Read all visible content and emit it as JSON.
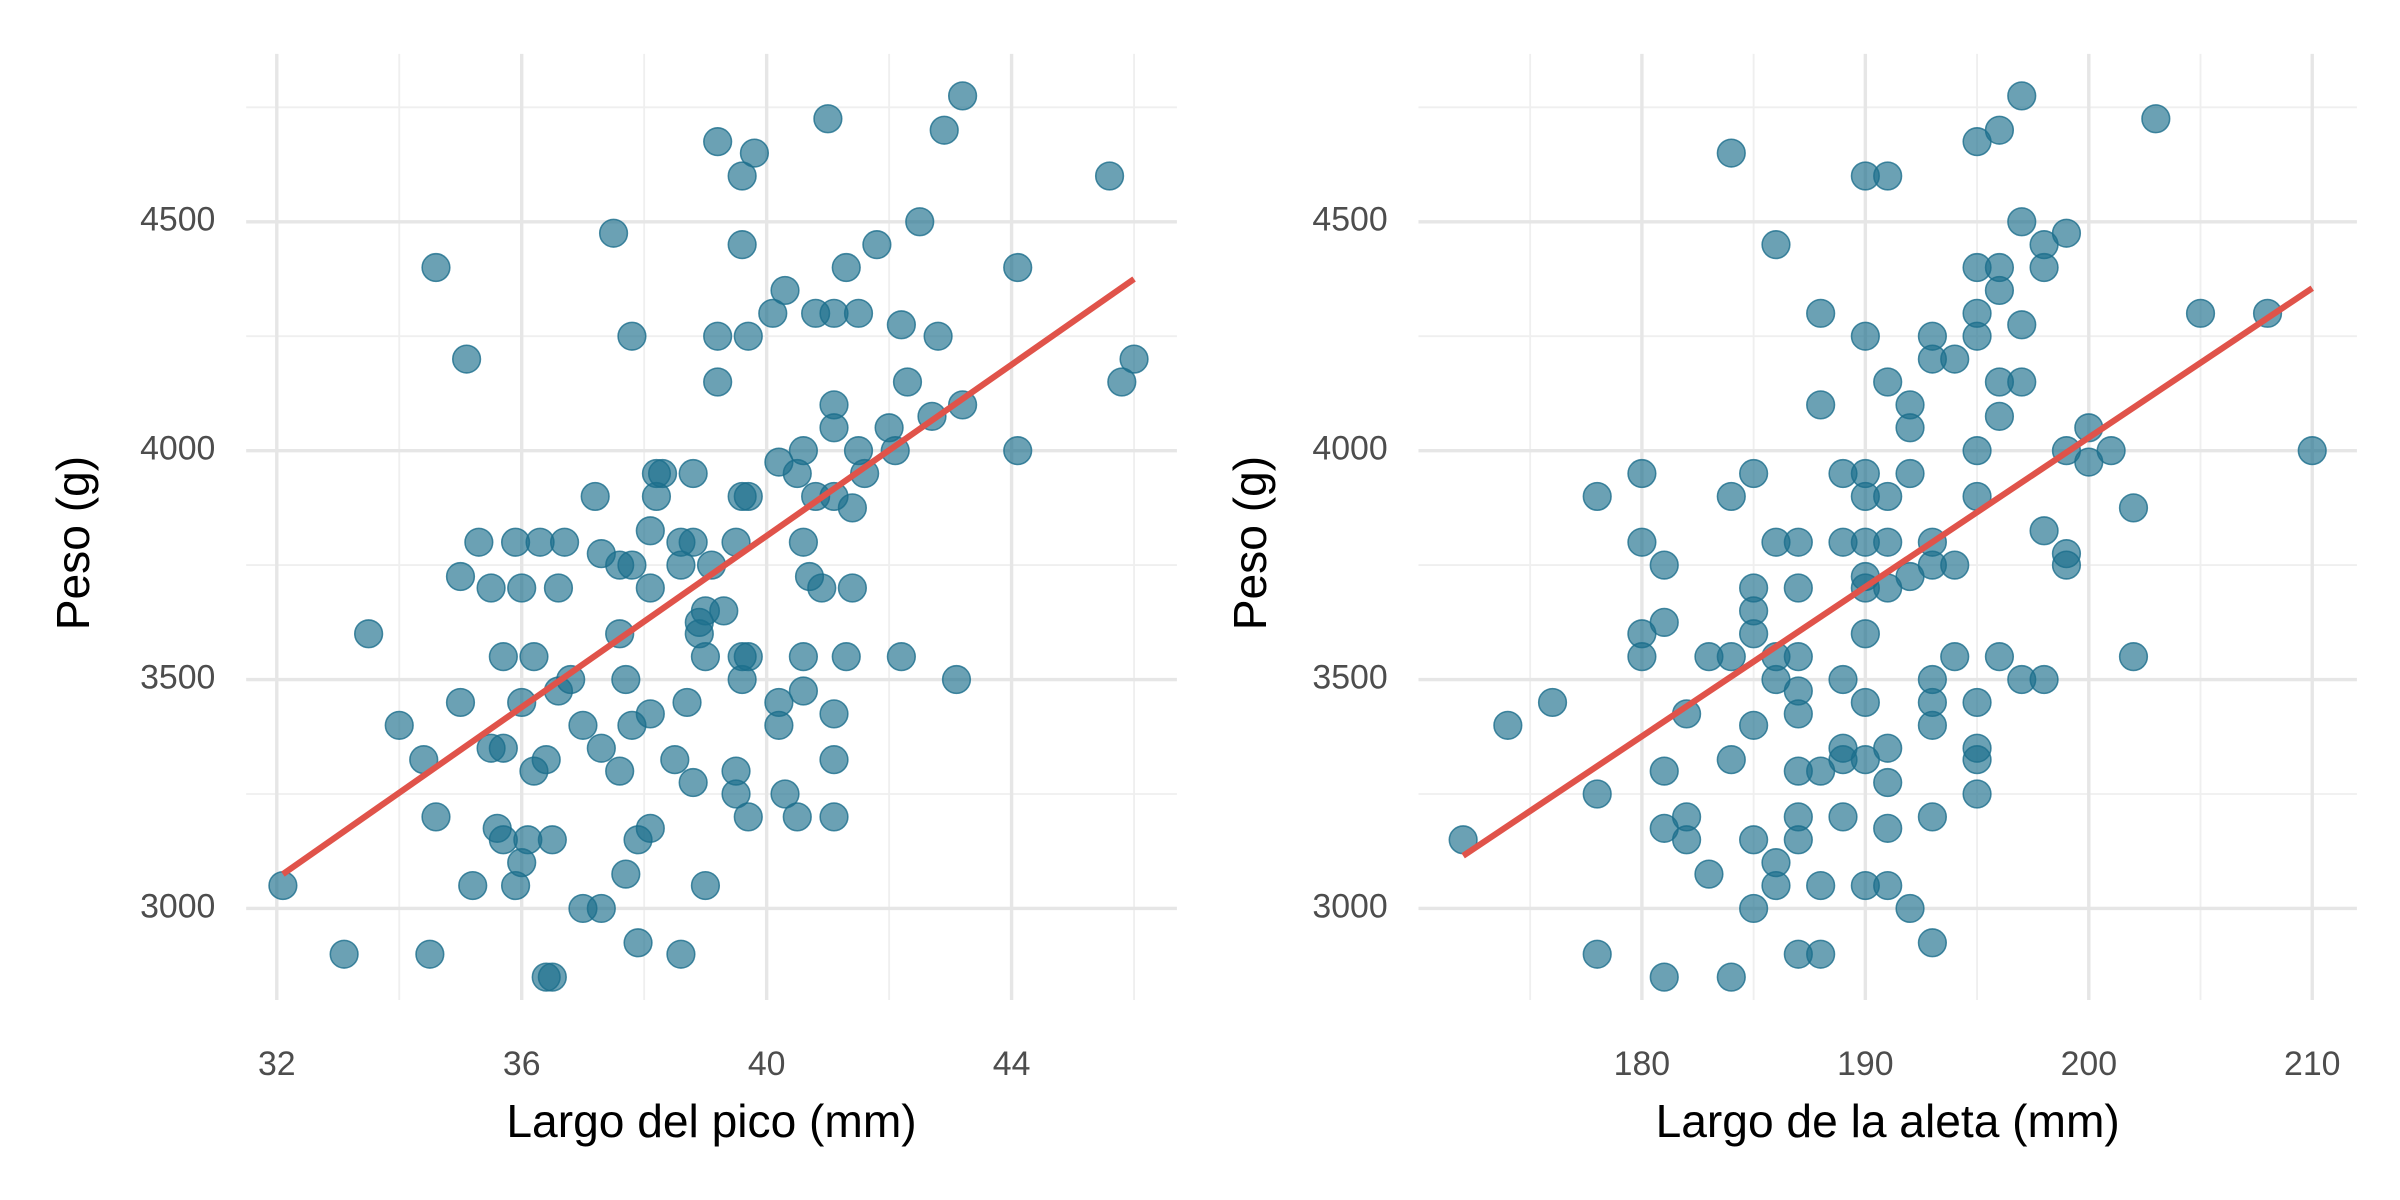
{
  "chart_data": [
    {
      "type": "scatter",
      "xlabel": "Largo del pico (mm)",
      "ylabel": "Peso (g)",
      "color": "#1b6e8c",
      "x": [
        32.1,
        33.1,
        33.5,
        34.0,
        34.4,
        34.5,
        34.6,
        34.6,
        35.0,
        35.0,
        35.1,
        35.2,
        35.3,
        35.5,
        35.5,
        35.6,
        35.7,
        35.7,
        35.7,
        35.9,
        35.9,
        36.0,
        36.0,
        36.0,
        36.1,
        36.2,
        36.2,
        36.3,
        36.4,
        36.4,
        36.5,
        36.5,
        36.6,
        36.6,
        36.7,
        36.8,
        37.0,
        37.0,
        37.2,
        37.3,
        37.3,
        37.3,
        37.5,
        37.6,
        37.6,
        37.6,
        37.7,
        37.7,
        37.8,
        37.8,
        37.8,
        37.9,
        37.9,
        38.1,
        38.1,
        38.1,
        38.1,
        38.2,
        38.2,
        38.3,
        38.5,
        38.6,
        38.6,
        38.6,
        38.7,
        38.8,
        38.8,
        38.8,
        38.9,
        38.9,
        39.0,
        39.0,
        39.0,
        39.1,
        39.2,
        39.2,
        39.2,
        39.3,
        39.5,
        39.5,
        39.5,
        39.6,
        39.6,
        39.6,
        39.6,
        39.6,
        39.7,
        39.7,
        39.7,
        39.7,
        39.8,
        40.1,
        40.2,
        40.2,
        40.2,
        40.3,
        40.3,
        40.5,
        40.5,
        40.6,
        40.6,
        40.6,
        40.6,
        40.7,
        40.8,
        40.8,
        40.9,
        41.0,
        41.1,
        41.1,
        41.1,
        41.1,
        41.1,
        41.1,
        41.1,
        41.3,
        41.3,
        41.4,
        41.4,
        41.5,
        41.5,
        41.6,
        41.8,
        42.0,
        42.1,
        42.2,
        42.2,
        42.3,
        42.5,
        42.7,
        42.8,
        42.9,
        43.1,
        43.2,
        43.2,
        44.1,
        44.1,
        45.6,
        45.8,
        46.0
      ],
      "y": [
        3050,
        2900,
        3600,
        3400,
        3325,
        2900,
        4400,
        3200,
        3725,
        3450,
        4200,
        3050,
        3800,
        3350,
        3700,
        3175,
        3550,
        3150,
        3350,
        3800,
        3050,
        3700,
        3450,
        3100,
        3150,
        3550,
        3300,
        3800,
        3325,
        2850,
        3150,
        2850,
        3700,
        3475,
        3800,
        3500,
        3400,
        3000,
        3900,
        3350,
        3000,
        3775,
        4475,
        3750,
        3600,
        3300,
        3500,
        3075,
        4250,
        3750,
        3400,
        2925,
        3150,
        3825,
        3700,
        3425,
        3175,
        3950,
        3900,
        3950,
        3325,
        3800,
        3750,
        2900,
        3450,
        3950,
        3800,
        3275,
        3600,
        3625,
        3650,
        3550,
        3050,
        3750,
        4675,
        4250,
        4150,
        3650,
        3800,
        3300,
        3250,
        4600,
        4450,
        3900,
        3550,
        3500,
        4250,
        3900,
        3550,
        3200,
        4650,
        4300,
        3450,
        3400,
        3975,
        4350,
        3250,
        3950,
        3200,
        4000,
        3800,
        3550,
        3475,
        3725,
        4300,
        3900,
        3700,
        4725,
        4300,
        4100,
        4050,
        3900,
        3425,
        3325,
        3200,
        4400,
        3550,
        3875,
        3700,
        4300,
        4000,
        3950,
        4450,
        4050,
        4000,
        4275,
        3550,
        4150,
        4500,
        4075,
        4250,
        4700,
        3500,
        4100,
        4775,
        4400,
        4000,
        4600,
        4150,
        4200
      ],
      "trendline": {
        "color": "#e0534a",
        "x": [
          32.1,
          46.0
        ],
        "y": [
          3075,
          4375
        ]
      },
      "xlim": [
        31.5,
        46.7
      ],
      "ylim": [
        2800,
        4850
      ],
      "xticks": [
        32,
        36,
        40,
        44
      ],
      "yticks": [
        3000,
        3500,
        4000,
        4500
      ],
      "xminor_ticks": [
        34,
        38,
        42,
        46
      ],
      "yminor_ticks": [
        3250,
        3750,
        4250,
        4750
      ],
      "grid": true
    },
    {
      "type": "scatter",
      "xlabel": "Largo de la aleta (mm)",
      "ylabel": "Peso (g)",
      "color": "#1b6e8c",
      "x": [
        172,
        174,
        176,
        178,
        178,
        178,
        180,
        180,
        180,
        180,
        181,
        181,
        181,
        181,
        181,
        182,
        182,
        182,
        183,
        183,
        184,
        184,
        184,
        184,
        184,
        185,
        185,
        185,
        185,
        185,
        185,
        185,
        186,
        186,
        186,
        186,
        186,
        186,
        187,
        187,
        187,
        187,
        187,
        187,
        187,
        187,
        187,
        188,
        188,
        188,
        188,
        188,
        189,
        189,
        189,
        189,
        189,
        189,
        190,
        190,
        190,
        190,
        190,
        190,
        190,
        190,
        190,
        190,
        190,
        191,
        191,
        191,
        191,
        191,
        191,
        191,
        191,
        191,
        192,
        192,
        192,
        192,
        192,
        193,
        193,
        193,
        193,
        193,
        193,
        193,
        193,
        193,
        194,
        194,
        194,
        195,
        195,
        195,
        195,
        195,
        195,
        195,
        195,
        195,
        195,
        196,
        196,
        196,
        196,
        196,
        196,
        197,
        197,
        197,
        197,
        197,
        198,
        198,
        198,
        198,
        199,
        199,
        199,
        199,
        200,
        200,
        201,
        202,
        202,
        203,
        205,
        208,
        210
      ],
      "y": [
        3150,
        3400,
        3450,
        3900,
        3250,
        2900,
        3950,
        3800,
        3600,
        3550,
        3750,
        3625,
        3300,
        3175,
        2850,
        3425,
        3200,
        3150,
        3550,
        3075,
        4650,
        3900,
        3550,
        3325,
        2850,
        3950,
        3700,
        3650,
        3600,
        3400,
        3150,
        3000,
        4450,
        3800,
        3550,
        3500,
        3100,
        3050,
        3800,
        3700,
        3550,
        3475,
        3425,
        3300,
        3200,
        3150,
        2900,
        4300,
        4100,
        3300,
        3050,
        2900,
        3950,
        3800,
        3500,
        3350,
        3325,
        3200,
        4600,
        4250,
        3950,
        3900,
        3800,
        3725,
        3700,
        3600,
        3450,
        3325,
        3050,
        4600,
        4150,
        3900,
        3800,
        3700,
        3350,
        3275,
        3175,
        3050,
        4100,
        4050,
        3950,
        3725,
        3000,
        4250,
        4200,
        3800,
        3750,
        3500,
        3450,
        3400,
        3200,
        2925,
        4200,
        3750,
        3550,
        4675,
        4400,
        4300,
        4250,
        4000,
        3900,
        3450,
        3350,
        3325,
        3250,
        4700,
        4400,
        4350,
        4150,
        4075,
        3550,
        4775,
        4500,
        4275,
        4150,
        3500,
        4450,
        4400,
        3825,
        3500,
        4475,
        4000,
        3775,
        3750,
        4050,
        3975,
        4000,
        3875,
        3550,
        4725,
        4300,
        4300,
        4000
      ],
      "trendline": {
        "color": "#e0534a",
        "x": [
          172,
          210
        ],
        "y": [
          3115,
          4355
        ]
      },
      "xlim": [
        170,
        212
      ],
      "ylim": [
        2800,
        4850
      ],
      "xticks": [
        180,
        190,
        200,
        210
      ],
      "yticks": [
        3000,
        3500,
        4000,
        4500
      ],
      "xminor_ticks": [
        175,
        185,
        195,
        205
      ],
      "yminor_ticks": [
        3250,
        3750,
        4250,
        4750
      ],
      "grid": true
    }
  ]
}
